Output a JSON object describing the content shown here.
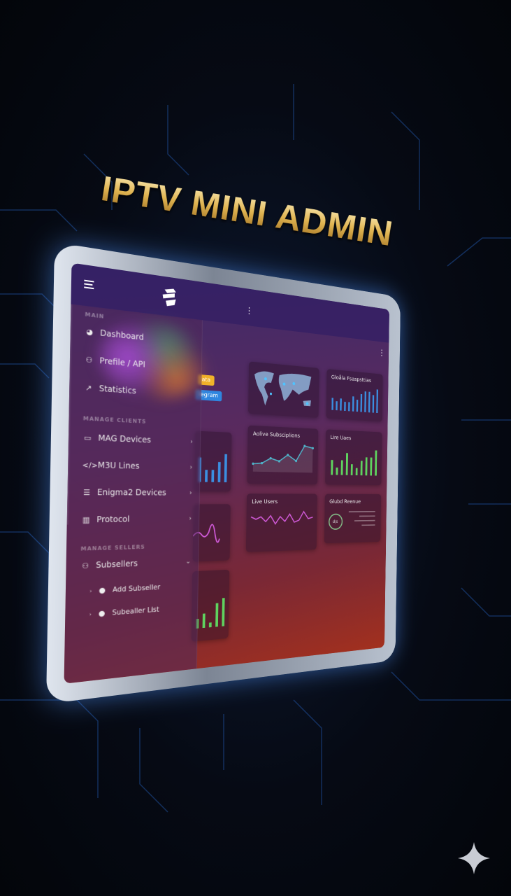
{
  "title": "IPTV MINI ADMIN",
  "sidebar": {
    "sections": [
      {
        "label": "MAIN",
        "items": [
          {
            "label": "Dashboard",
            "icon": "dashboard-icon"
          },
          {
            "label": "Prefile / API",
            "icon": "user-icon"
          },
          {
            "label": "Statistics",
            "icon": "chart-line-icon"
          }
        ]
      },
      {
        "label": "MANAGE CLIENTS",
        "items": [
          {
            "label": "MAG Devices",
            "icon": "monitor-icon"
          },
          {
            "label": "M3U Lines",
            "icon": "code-icon"
          },
          {
            "label": "Enigma2 Devices",
            "icon": "server-icon"
          },
          {
            "label": "Protocol",
            "icon": "barcode-icon"
          }
        ]
      },
      {
        "label": "MANAGE SELLERS",
        "items": [
          {
            "label": "Subsellers",
            "icon": "users-icon"
          }
        ],
        "subitems": [
          {
            "label": "Add Subseller",
            "icon": "user-add-icon"
          },
          {
            "label": "Subealler List",
            "icon": "user-list-icon"
          }
        ]
      }
    ]
  },
  "buttons": {
    "yellow": "ata",
    "blue": "legram"
  },
  "cards": {
    "global_resellers": "Gloåla Fsaspsttias",
    "active_subscriptions": "Aolive Subsciplions",
    "live_users_bars": "Lire Uaes",
    "live_users_line": "Live Users",
    "global_revenue": "Glubd Reenue",
    "revenue_gauge": "d/s"
  },
  "colors": {
    "blue": "#3b8fe0",
    "green": "#5fd35f",
    "teal": "#4fb3c9",
    "magenta": "#d05ad8",
    "yellow": "#f0b429"
  },
  "chart_data": [
    {
      "type": "bar",
      "name": "global_resellers",
      "values": [
        4,
        3,
        4,
        3,
        3,
        5,
        4,
        6,
        7,
        7,
        6,
        8
      ]
    },
    {
      "type": "area",
      "name": "active_subscriptions",
      "values": [
        2,
        2.2,
        3.5,
        2.8,
        4.5,
        3,
        7,
        6.5
      ]
    },
    {
      "type": "bar",
      "name": "live_users_bars",
      "values": [
        4,
        2,
        4,
        6,
        3,
        2,
        4,
        5,
        5,
        7
      ]
    },
    {
      "type": "line",
      "name": "live_users_line",
      "values": [
        4,
        3.5,
        4,
        3,
        4.2,
        2.5,
        4,
        3,
        4.5,
        2.8,
        3.2,
        5,
        3.5,
        3.8
      ]
    },
    {
      "type": "bar",
      "name": "left_bars_1",
      "values": [
        6,
        3,
        3,
        5,
        7
      ]
    },
    {
      "type": "bar",
      "name": "left_bars_2",
      "values": [
        2,
        3,
        1,
        5,
        6
      ]
    }
  ]
}
